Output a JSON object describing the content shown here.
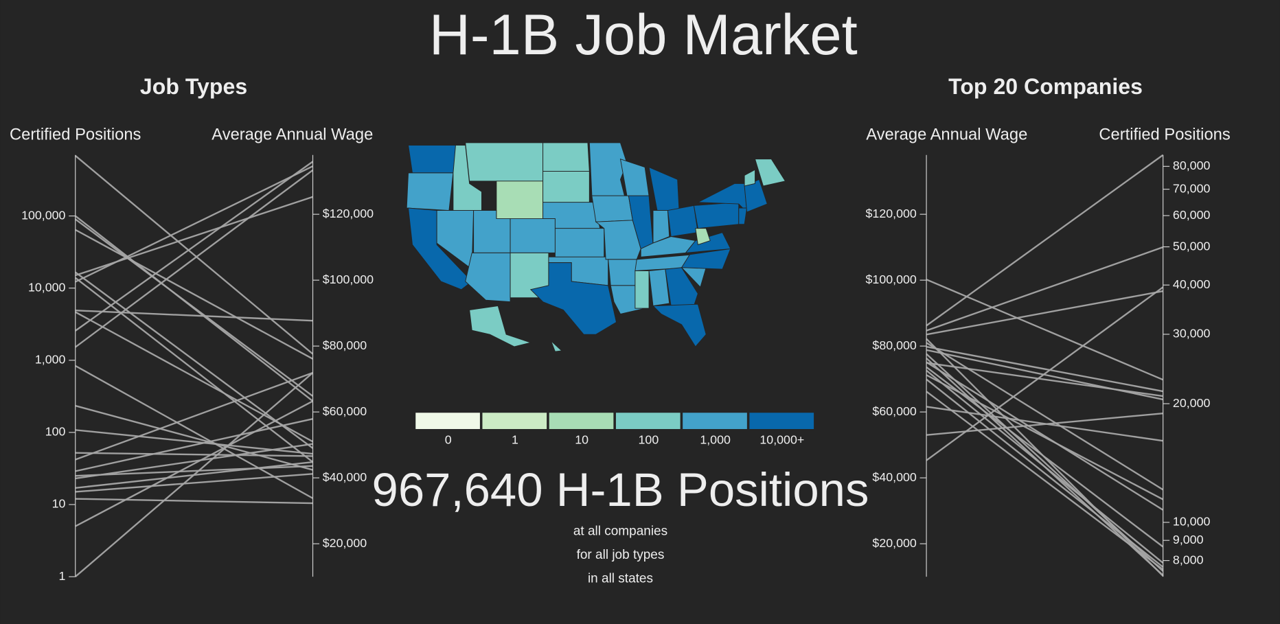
{
  "title": "H-1B Job Market",
  "chart_data": [
    {
      "type": "parallel",
      "title": "Job Types",
      "color": "#a6a6a6",
      "axes": [
        {
          "label": "Certified Positions",
          "scale": "log",
          "lim": [
            1,
            700000
          ],
          "ticks": [
            1,
            10,
            100,
            {
              "value": 1000,
              "label": "1,000"
            },
            {
              "value": 10000,
              "label": "10,000"
            },
            {
              "value": 100000,
              "label": "100,000"
            }
          ],
          "values": [
            684000,
            100000,
            90200,
            64300,
            16600,
            13900,
            12200,
            15000,
            4900,
            4660,
            2560,
            1520,
            838,
            234,
            108,
            52,
            42,
            29,
            25,
            23,
            17,
            15,
            12,
            5,
            1
          ]
        },
        {
          "label": "Average Annual Wage",
          "scale": "linear",
          "lim": [
            10000,
            138000
          ],
          "ticks": [
            {
              "value": 20000,
              "label": "$20,000"
            },
            {
              "value": 40000,
              "label": "$40,000"
            },
            {
              "value": 60000,
              "label": "$60,000"
            },
            {
              "value": 80000,
              "label": "$80,000"
            },
            {
              "value": 100000,
              "label": "$100,000"
            },
            {
              "value": 120000,
              "label": "$120,000"
            }
          ],
          "values": [
            77600,
            63300,
            64800,
            76100,
            49000,
            44800,
            134600,
            125300,
            87700,
            51000,
            136000,
            133400,
            33800,
            42400,
            47300,
            46600,
            71900,
            57900,
            43600,
            50300,
            44800,
            41200,
            32300,
            63300,
            71900
          ]
        }
      ]
    },
    {
      "type": "parallel",
      "title": "Top 20 Companies",
      "color": "#a6a6a6",
      "axes": [
        {
          "label": "Average Annual Wage",
          "scale": "linear",
          "lim": [
            10000,
            138000
          ],
          "ticks": [
            {
              "value": 20000,
              "label": "$20,000"
            },
            {
              "value": 40000,
              "label": "$40,000"
            },
            {
              "value": 60000,
              "label": "$60,000"
            },
            {
              "value": 80000,
              "label": "$80,000"
            },
            {
              "value": 100000,
              "label": "$100,000"
            },
            {
              "value": 120000,
              "label": "$120,000"
            }
          ],
          "values": [
            100200,
            86200,
            84700,
            83500,
            82200,
            81000,
            79800,
            78800,
            77600,
            76300,
            74900,
            73600,
            72600,
            71200,
            69900,
            66200,
            61600,
            53000,
            45300,
            75100
          ]
        },
        {
          "label": "Certified Positions",
          "scale": "log",
          "lim": [
            7280,
            85500
          ],
          "ticks": [
            {
              "value": 8000,
              "label": "8,000"
            },
            {
              "value": 9000,
              "label": "9,000"
            },
            {
              "value": 10000,
              "label": "10,000"
            },
            {
              "value": 20000,
              "label": "20,000"
            },
            {
              "value": 30000,
              "label": "30,000"
            },
            {
              "value": 40000,
              "label": "40,000"
            },
            {
              "value": 50000,
              "label": "50,000"
            },
            {
              "value": 60000,
              "label": "60,000"
            },
            {
              "value": 70000,
              "label": "70,000"
            },
            {
              "value": 80000,
              "label": "80,000"
            }
          ],
          "values": [
            23000,
            85500,
            49900,
            38600,
            7310,
            12100,
            21500,
            20500,
            7520,
            7340,
            20900,
            8670,
            7890,
            11430,
            7700,
            7590,
            16100,
            18900,
            39500,
            10750
          ]
        }
      ]
    }
  ],
  "map": {
    "legend": [
      {
        "label": "0",
        "color": "#f0f9e8"
      },
      {
        "label": "1",
        "color": "#ccebc5"
      },
      {
        "label": "10",
        "color": "#a8ddb5"
      },
      {
        "label": "100",
        "color": "#7bccc4"
      },
      {
        "label": "1,000",
        "color": "#43a2ca"
      },
      {
        "label": "10,000+",
        "color": "#0868ac"
      }
    ]
  },
  "summary": {
    "headline": "967,640 H-1B Positions",
    "lines": [
      "at all companies",
      "for all job types",
      "in all states"
    ]
  }
}
